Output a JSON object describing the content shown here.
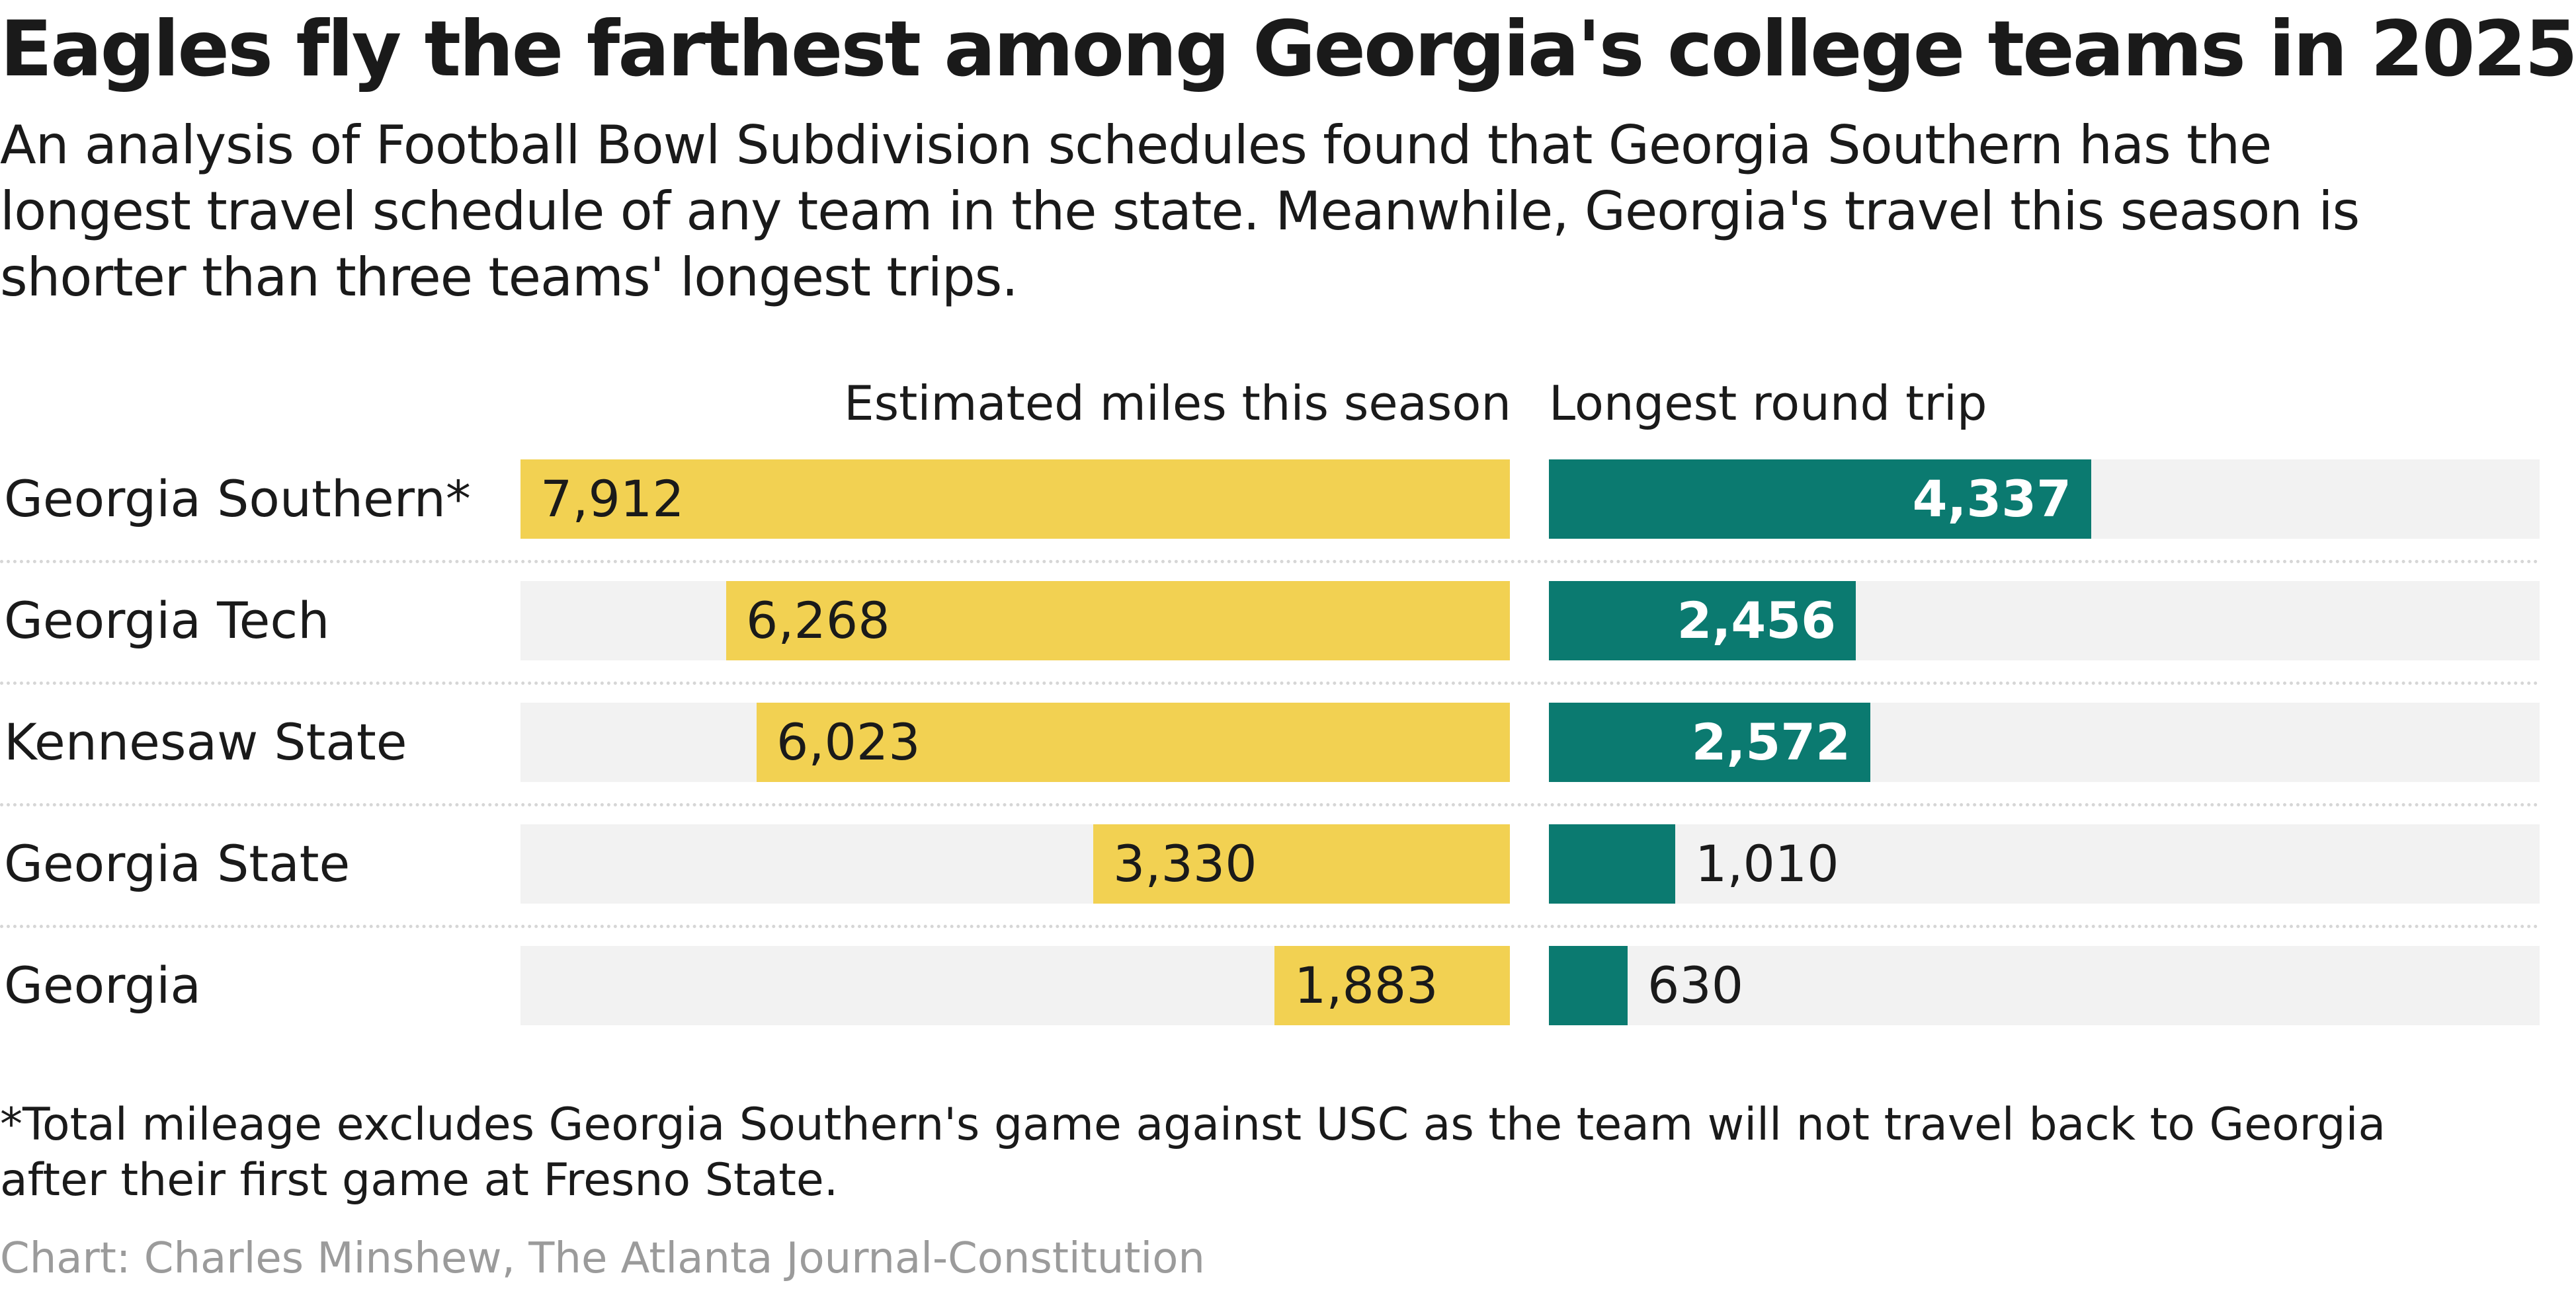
{
  "title": "Eagles fly the farthest among Georgia's college teams in 2025",
  "subtitle": "An analysis of Football Bowl Subdivision schedules found that Georgia Southern has the longest travel schedule of any team in the state. Meanwhile, Georgia's travel this season is shorter than three teams' longest trips.",
  "footnote": "*Total mileage excludes Georgia Southern's game against USC as the team will not travel back to Georgia after their first game at Fresno State.",
  "credit": "Chart: Charles Minshew, The Atlanta Journal-Constitution",
  "colors": {
    "miles_bar": "#f2d152",
    "trip_bar": "#0b7a70",
    "track": "#f2f2f2",
    "credit_text": "#9b9b9b"
  },
  "chart_data": {
    "type": "bar",
    "orientation": "horizontal",
    "categories": [
      "Georgia Southern*",
      "Georgia Tech",
      "Kennesaw State",
      "Georgia State",
      "Georgia"
    ],
    "series": [
      {
        "name": "Estimated miles this season",
        "values": [
          7912,
          6268,
          6023,
          3330,
          1883
        ],
        "labels": [
          "7,912",
          "6,268",
          "6,023",
          "3,330",
          "1,883"
        ],
        "direction": "right-aligned",
        "xlim": [
          0,
          7912
        ]
      },
      {
        "name": "Longest round trip",
        "values": [
          4337,
          2456,
          2572,
          1010,
          630
        ],
        "labels": [
          "4,337",
          "2,456",
          "2,572",
          "1,010",
          "630"
        ],
        "direction": "left-aligned",
        "xlim": [
          0,
          7912
        ]
      }
    ]
  }
}
